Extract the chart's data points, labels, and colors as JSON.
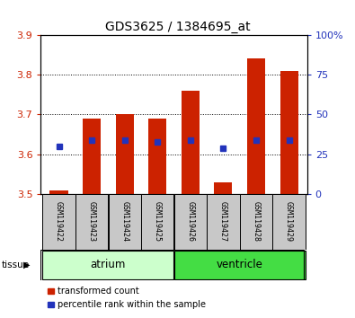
{
  "title": "GDS3625 / 1384695_at",
  "samples": [
    "GSM119422",
    "GSM119423",
    "GSM119424",
    "GSM119425",
    "GSM119426",
    "GSM119427",
    "GSM119428",
    "GSM119429"
  ],
  "bar_base": 3.5,
  "bar_tops": [
    3.51,
    3.69,
    3.7,
    3.69,
    3.76,
    3.53,
    3.84,
    3.81
  ],
  "blue_y": [
    3.62,
    3.635,
    3.635,
    3.63,
    3.635,
    3.615,
    3.635,
    3.635
  ],
  "bar_color": "#cc2200",
  "blue_color": "#2233bb",
  "ylim": [
    3.5,
    3.9
  ],
  "yticks": [
    3.5,
    3.6,
    3.7,
    3.8,
    3.9
  ],
  "right_ylim": [
    0,
    100
  ],
  "right_yticks": [
    0,
    25,
    50,
    75,
    100
  ],
  "right_ylabels": [
    "0",
    "25",
    "50",
    "75",
    "100%"
  ],
  "tissue_groups": [
    {
      "label": "atrium",
      "samples": [
        0,
        1,
        2,
        3
      ],
      "color": "#ccffcc"
    },
    {
      "label": "ventricle",
      "samples": [
        4,
        5,
        6,
        7
      ],
      "color": "#44dd44"
    }
  ],
  "tissue_label": "tissue",
  "legend_items": [
    {
      "color": "#cc2200",
      "label": "transformed count"
    },
    {
      "color": "#2233bb",
      "label": "percentile rank within the sample"
    }
  ],
  "bar_width": 0.55,
  "sample_box_color": "#c8c8c8",
  "tick_label_color_left": "#cc2200",
  "tick_label_color_right": "#2233bb"
}
